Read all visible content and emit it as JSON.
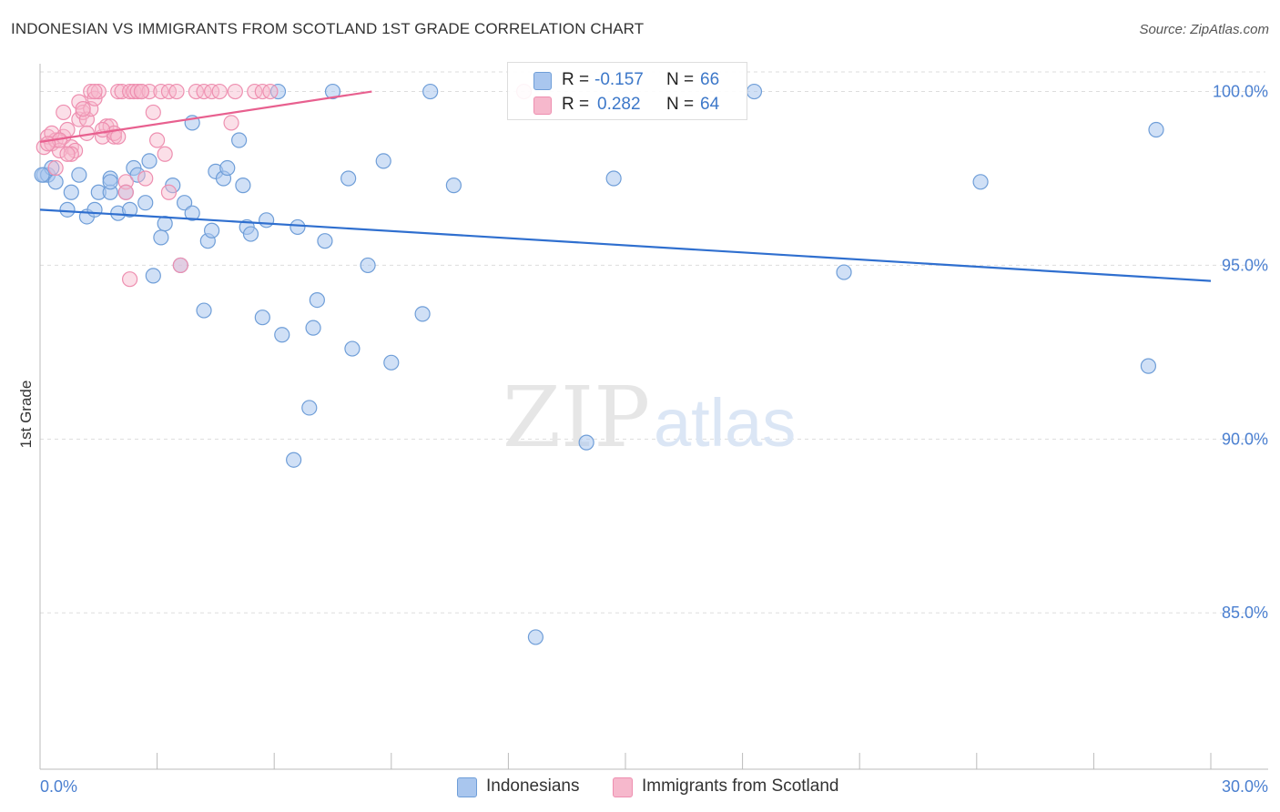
{
  "title": "INDONESIAN VS IMMIGRANTS FROM SCOTLAND 1ST GRADE CORRELATION CHART",
  "source": "Source: ZipAtlas.com",
  "watermark": {
    "zip": "ZIP",
    "atlas": "atlas"
  },
  "colors": {
    "blue_fill": "#a9c6ee",
    "blue_stroke": "#6f9ed8",
    "blue_line": "#2f6fcf",
    "pink_fill": "#f6b8cc",
    "pink_stroke": "#ee8fb0",
    "pink_line": "#e8608f",
    "tick_text": "#4a7fd0",
    "grid": "#dddddd"
  },
  "legend": {
    "rows": [
      {
        "r_label": "R =",
        "r_value": "-0.157",
        "n_label": "N =",
        "n_value": "66",
        "color": "blue"
      },
      {
        "r_label": "R =",
        "r_value": "0.282",
        "n_label": "N =",
        "n_value": "64",
        "color": "pink"
      }
    ]
  },
  "bottom_legend": [
    {
      "label": "Indonesians",
      "color": "blue"
    },
    {
      "label": "Immigrants from Scotland",
      "color": "pink"
    }
  ],
  "chart_data": {
    "type": "scatter",
    "title": "INDONESIAN VS IMMIGRANTS FROM SCOTLAND 1ST GRADE CORRELATION CHART",
    "xlabel": "",
    "ylabel": "1st Grade",
    "xlim": [
      0,
      30
    ],
    "ylim": [
      80.5,
      100.8
    ],
    "x_tick_labels": [
      "0.0%",
      "30.0%"
    ],
    "y_ticks": [
      {
        "value": 100.0,
        "label": "100.0%"
      },
      {
        "value": 95.0,
        "label": "95.0%"
      },
      {
        "value": 90.0,
        "label": "90.0%"
      },
      {
        "value": 85.0,
        "label": "85.0%"
      }
    ],
    "grid": true,
    "legend_position": "top-center",
    "series": [
      {
        "name": "Indonesians",
        "color": "blue",
        "trend": {
          "x": [
            0,
            30
          ],
          "y": [
            96.6,
            94.55
          ]
        },
        "points": [
          [
            0.1,
            97.6
          ],
          [
            0.2,
            97.6
          ],
          [
            0.3,
            97.8
          ],
          [
            0.4,
            97.4
          ],
          [
            0.7,
            96.6
          ],
          [
            0.8,
            97.1
          ],
          [
            1.0,
            97.6
          ],
          [
            1.2,
            96.4
          ],
          [
            1.4,
            96.6
          ],
          [
            1.5,
            97.1
          ],
          [
            1.8,
            97.5
          ],
          [
            1.8,
            97.1
          ],
          [
            2.0,
            96.5
          ],
          [
            2.2,
            97.1
          ],
          [
            2.3,
            96.6
          ],
          [
            2.4,
            97.8
          ],
          [
            2.5,
            97.6
          ],
          [
            2.7,
            96.8
          ],
          [
            2.8,
            98.0
          ],
          [
            2.9,
            94.7
          ],
          [
            3.1,
            95.8
          ],
          [
            3.2,
            96.2
          ],
          [
            3.4,
            97.3
          ],
          [
            3.7,
            96.8
          ],
          [
            3.9,
            96.5
          ],
          [
            3.9,
            99.1
          ],
          [
            4.2,
            93.7
          ],
          [
            4.3,
            95.7
          ],
          [
            4.4,
            96.0
          ],
          [
            4.5,
            97.7
          ],
          [
            4.7,
            97.5
          ],
          [
            4.8,
            97.8
          ],
          [
            5.1,
            98.6
          ],
          [
            5.2,
            97.3
          ],
          [
            5.3,
            96.1
          ],
          [
            5.4,
            95.9
          ],
          [
            5.7,
            93.5
          ],
          [
            5.8,
            96.3
          ],
          [
            6.1,
            100.0
          ],
          [
            6.2,
            93.0
          ],
          [
            6.5,
            89.4
          ],
          [
            6.6,
            96.1
          ],
          [
            6.9,
            90.9
          ],
          [
            7.0,
            93.2
          ],
          [
            7.1,
            94.0
          ],
          [
            7.3,
            95.7
          ],
          [
            7.5,
            100.0
          ],
          [
            7.9,
            97.5
          ],
          [
            8.0,
            92.6
          ],
          [
            8.4,
            95.0
          ],
          [
            8.8,
            98.0
          ],
          [
            9.0,
            92.2
          ],
          [
            9.8,
            93.6
          ],
          [
            10.0,
            100.0
          ],
          [
            10.6,
            97.3
          ],
          [
            12.7,
            84.3
          ],
          [
            14.0,
            89.9
          ],
          [
            14.7,
            97.5
          ],
          [
            18.3,
            100.0
          ],
          [
            20.6,
            94.8
          ],
          [
            24.1,
            97.4
          ],
          [
            28.4,
            92.1
          ],
          [
            28.6,
            98.9
          ],
          [
            0.05,
            97.6
          ],
          [
            1.8,
            97.4
          ],
          [
            3.6,
            95.0
          ]
        ]
      },
      {
        "name": "Immigrants from Scotland",
        "color": "pink",
        "trend": {
          "x": [
            0,
            8.5
          ],
          "y": [
            98.55,
            100.0
          ]
        },
        "points": [
          [
            0.1,
            98.4
          ],
          [
            0.2,
            98.7
          ],
          [
            0.3,
            98.5
          ],
          [
            0.4,
            98.6
          ],
          [
            0.5,
            98.3
          ],
          [
            0.6,
            99.4
          ],
          [
            0.6,
            98.7
          ],
          [
            0.7,
            98.9
          ],
          [
            0.8,
            98.4
          ],
          [
            0.9,
            98.3
          ],
          [
            1.0,
            99.7
          ],
          [
            1.0,
            99.2
          ],
          [
            1.1,
            99.4
          ],
          [
            1.2,
            99.2
          ],
          [
            1.3,
            99.5
          ],
          [
            1.3,
            100.0
          ],
          [
            1.4,
            99.8
          ],
          [
            1.5,
            100.0
          ],
          [
            1.6,
            98.7
          ],
          [
            1.7,
            99.0
          ],
          [
            1.8,
            99.0
          ],
          [
            1.9,
            98.7
          ],
          [
            1.9,
            98.8
          ],
          [
            2.0,
            100.0
          ],
          [
            2.1,
            100.0
          ],
          [
            2.2,
            97.4
          ],
          [
            2.3,
            100.0
          ],
          [
            2.4,
            100.0
          ],
          [
            2.5,
            100.0
          ],
          [
            2.6,
            100.0
          ],
          [
            2.7,
            97.5
          ],
          [
            2.8,
            100.0
          ],
          [
            2.9,
            99.4
          ],
          [
            3.0,
            98.6
          ],
          [
            3.1,
            100.0
          ],
          [
            3.2,
            98.2
          ],
          [
            3.3,
            100.0
          ],
          [
            3.5,
            100.0
          ],
          [
            3.6,
            95.0
          ],
          [
            4.0,
            100.0
          ],
          [
            4.2,
            100.0
          ],
          [
            4.4,
            100.0
          ],
          [
            4.9,
            99.1
          ],
          [
            5.0,
            100.0
          ],
          [
            5.5,
            100.0
          ],
          [
            5.7,
            100.0
          ],
          [
            5.9,
            100.0
          ],
          [
            12.4,
            100.0
          ],
          [
            0.3,
            98.8
          ],
          [
            0.4,
            97.8
          ],
          [
            0.5,
            98.6
          ],
          [
            0.8,
            98.2
          ],
          [
            1.2,
            98.8
          ],
          [
            1.6,
            98.9
          ],
          [
            2.0,
            98.7
          ],
          [
            2.2,
            97.1
          ],
          [
            2.3,
            94.6
          ],
          [
            0.2,
            98.5
          ],
          [
            0.7,
            98.2
          ],
          [
            1.1,
            99.5
          ],
          [
            1.4,
            100.0
          ],
          [
            2.6,
            100.0
          ],
          [
            3.3,
            97.1
          ],
          [
            4.6,
            100.0
          ]
        ]
      }
    ]
  }
}
